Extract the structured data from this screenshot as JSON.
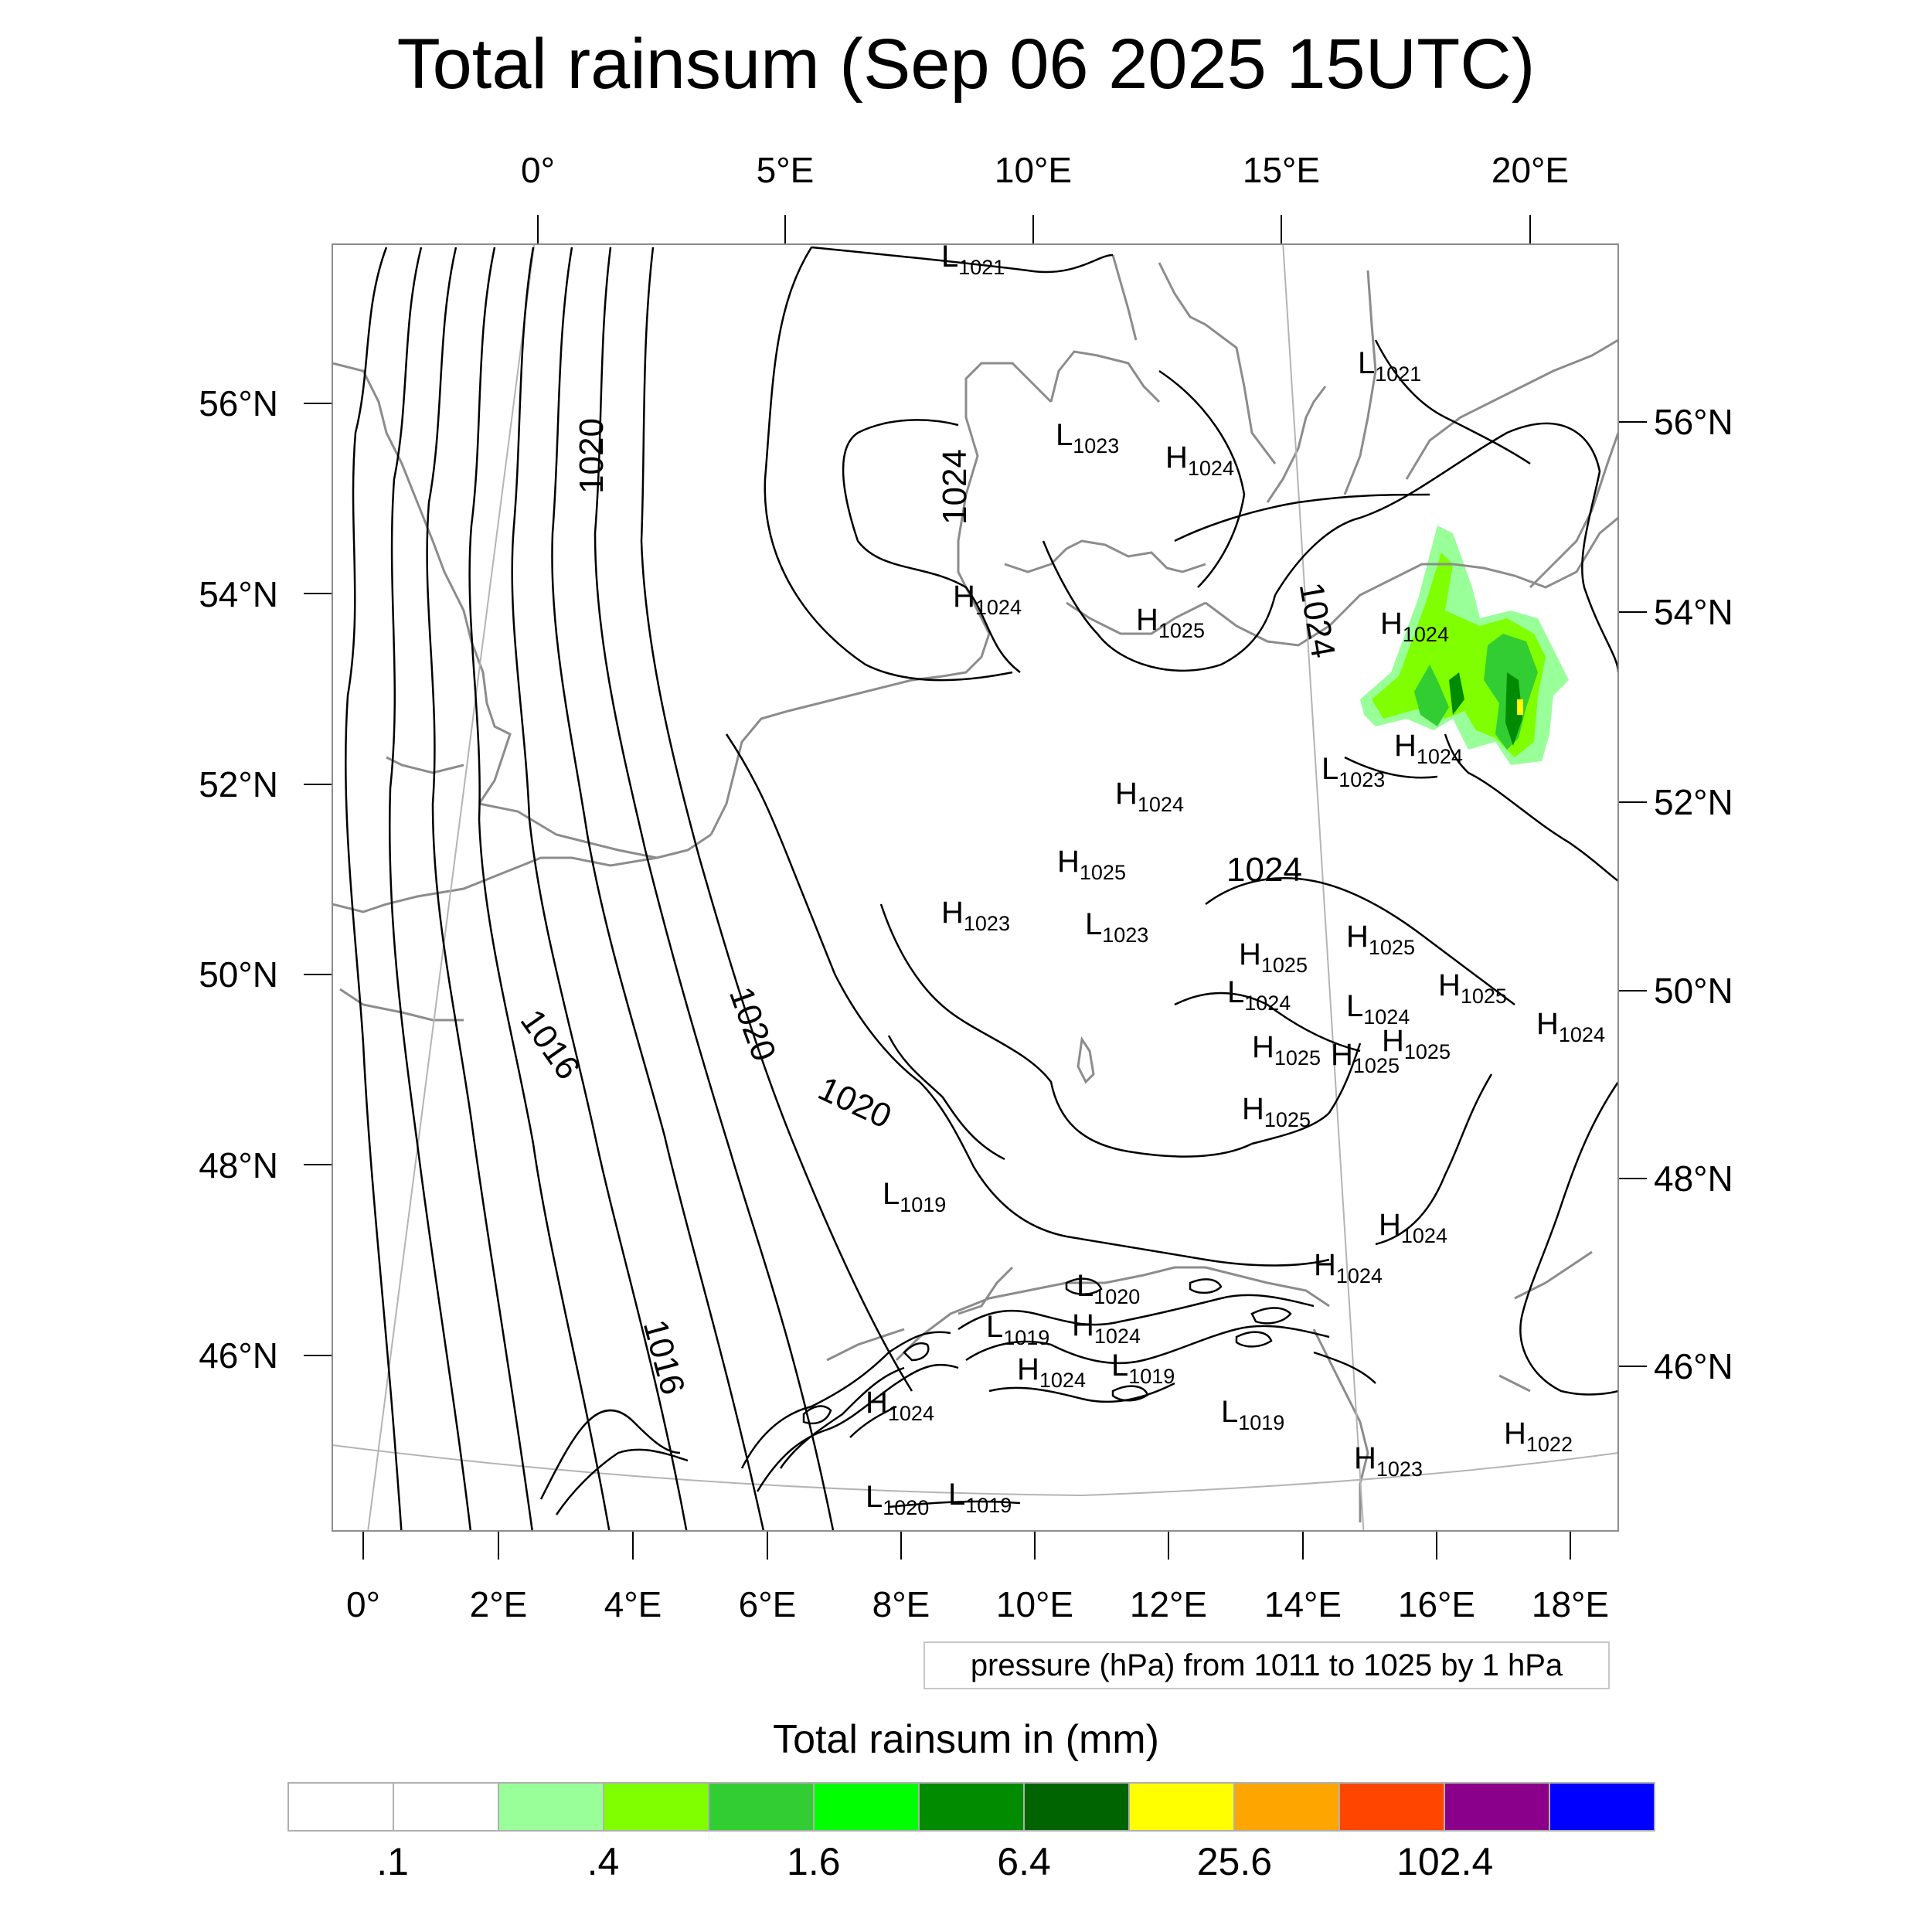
{
  "title": "Total rainsum (Sep 06 2025 15UTC)",
  "top_lon_labels": [
    "0°",
    "5°E",
    "10°E",
    "15°E",
    "20°E"
  ],
  "bottom_lon_labels": [
    "0°",
    "2°E",
    "4°E",
    "6°E",
    "8°E",
    "10°E",
    "12°E",
    "14°E",
    "16°E",
    "18°E"
  ],
  "left_lat_labels": [
    "56°N",
    "54°N",
    "52°N",
    "50°N",
    "48°N",
    "46°N"
  ],
  "right_lat_labels": [
    "56°N",
    "54°N",
    "52°N",
    "50°N",
    "48°N",
    "46°N"
  ],
  "isobar_labels": [
    "1020",
    "1024",
    "1024",
    "1024",
    "1016",
    "1020",
    "1020",
    "1016"
  ],
  "pressure_centers": [
    {
      "type": "L",
      "value": "1021"
    },
    {
      "type": "L",
      "value": "1021"
    },
    {
      "type": "L",
      "value": "1023"
    },
    {
      "type": "H",
      "value": "1024"
    },
    {
      "type": "H",
      "value": "1024"
    },
    {
      "type": "H",
      "value": "1025"
    },
    {
      "type": "H",
      "value": "1024"
    },
    {
      "type": "H",
      "value": "1024"
    },
    {
      "type": "L",
      "value": "1023"
    },
    {
      "type": "H",
      "value": "1024"
    },
    {
      "type": "H",
      "value": "1025"
    },
    {
      "type": "H",
      "value": "1023"
    },
    {
      "type": "L",
      "value": "1023"
    },
    {
      "type": "H",
      "value": "1025"
    },
    {
      "type": "H",
      "value": "1025"
    },
    {
      "type": "L",
      "value": "1024"
    },
    {
      "type": "L",
      "value": "1024"
    },
    {
      "type": "H",
      "value": "1025"
    },
    {
      "type": "H",
      "value": "1024"
    },
    {
      "type": "H",
      "value": "1025"
    },
    {
      "type": "H",
      "value": "1025"
    },
    {
      "type": "H",
      "value": "1025"
    },
    {
      "type": "H",
      "value": "1025"
    },
    {
      "type": "L",
      "value": "1019"
    },
    {
      "type": "H",
      "value": "1024"
    },
    {
      "type": "H",
      "value": "1024"
    },
    {
      "type": "L",
      "value": "1020"
    },
    {
      "type": "L",
      "value": "1019"
    },
    {
      "type": "H",
      "value": "1024"
    },
    {
      "type": "H",
      "value": "1024"
    },
    {
      "type": "L",
      "value": "1019"
    },
    {
      "type": "H",
      "value": "1024"
    },
    {
      "type": "L",
      "value": "1019"
    },
    {
      "type": "H",
      "value": "1023"
    },
    {
      "type": "H",
      "value": "1022"
    },
    {
      "type": "L",
      "value": "1020"
    },
    {
      "type": "L",
      "value": "1019"
    }
  ],
  "contour_legend": "pressure (hPa) from 1011 to 1025 by 1 hPa",
  "colorbar": {
    "title": "Total rainsum in (mm)",
    "colors": [
      "#ffffff",
      "#ffffff",
      "#99ff99",
      "#80ff00",
      "#32cd32",
      "#00ff00",
      "#008b00",
      "#006400",
      "#ffff00",
      "#ffa500",
      "#ff4500",
      "#8b008b",
      "#0000ff"
    ],
    "labels": [
      ".1",
      ".4",
      "1.6",
      "6.4",
      "25.6",
      "102.4"
    ]
  },
  "map_style": {
    "contour_color": "#000000",
    "coastline_color": "#8c8c8c",
    "grid_color": "#b4b4b4"
  }
}
